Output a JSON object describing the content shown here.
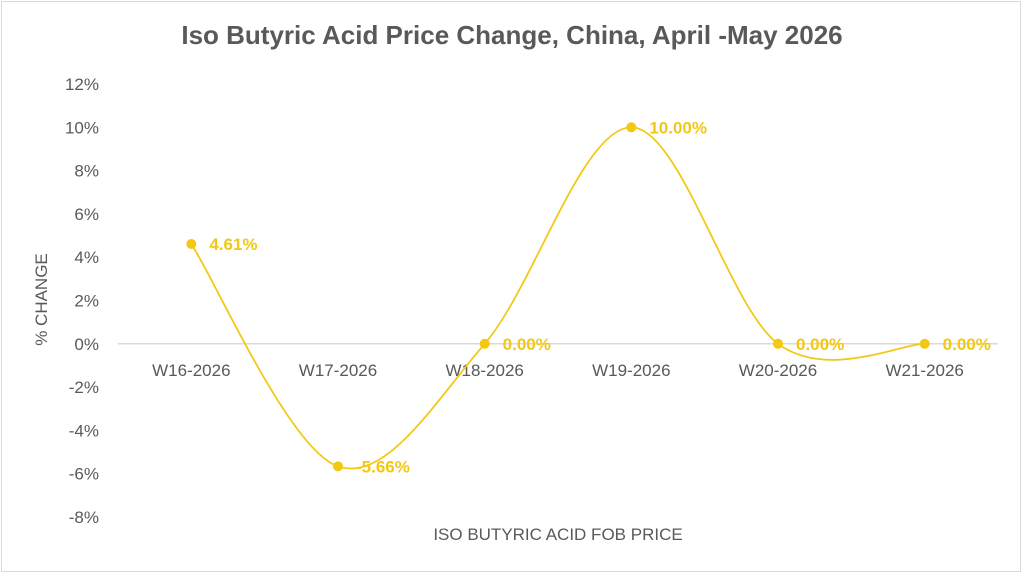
{
  "chart_data": {
    "type": "line",
    "title": "Iso Butyric Acid Price Change, China, April -May 2026",
    "xlabel": "ISO BUTYRIC ACID FOB PRICE",
    "ylabel": "% CHANGE",
    "categories": [
      "W16-2026",
      "W17-2026",
      "W18-2026",
      "W19-2026",
      "W20-2026",
      "W21-2026"
    ],
    "series": [
      {
        "values": [
          4.61,
          -5.66,
          0.0,
          10.0,
          0.0,
          0.0
        ],
        "data_labels": [
          "4.61%",
          "-5.66%",
          "0.00%",
          "10.00%",
          "0.00%",
          "0.00%"
        ],
        "color": "#F2C811",
        "smooth": true
      }
    ],
    "ylim": [
      -8,
      12
    ],
    "yticks": [
      12,
      10,
      8,
      6,
      4,
      2,
      0,
      -2,
      -4,
      -6,
      -8
    ],
    "ytick_labels": [
      "12%",
      "10%",
      "8%",
      "6%",
      "4%",
      "2%",
      "0%",
      "-2%",
      "-4%",
      "-6%",
      "-8%"
    ],
    "grid": false,
    "legend": "none",
    "colors": {
      "line": "#F2C811",
      "text": "#595959",
      "axis": "#d9d9d9"
    }
  }
}
